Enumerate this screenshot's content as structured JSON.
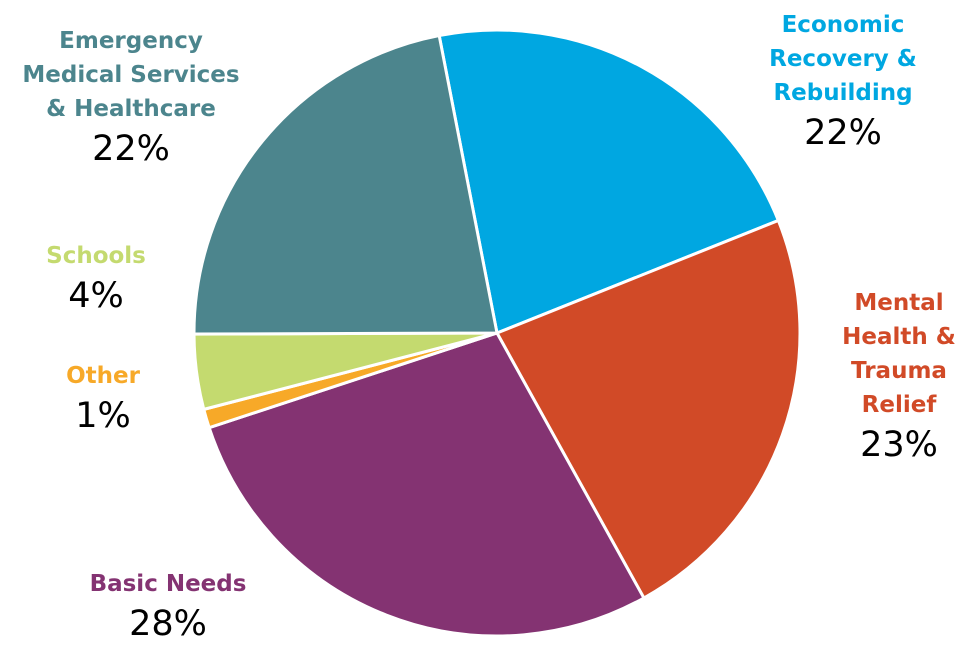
{
  "chart_data": {
    "type": "pie",
    "title": "",
    "slices": [
      {
        "label_lines": [
          "Economic",
          "Recovery &",
          "Rebuilding"
        ],
        "percent_text": "22%",
        "value": 22,
        "color": "#00A7E1"
      },
      {
        "label_lines": [
          "Mental",
          "Health &",
          "Trauma",
          "Relief"
        ],
        "percent_text": "23%",
        "value": 23,
        "color": "#D14A27"
      },
      {
        "label_lines": [
          "Basic Needs"
        ],
        "percent_text": "28%",
        "value": 28,
        "color": "#843372"
      },
      {
        "label_lines": [
          "Other"
        ],
        "percent_text": "1%",
        "value": 1,
        "color": "#F7A928"
      },
      {
        "label_lines": [
          "Schools"
        ],
        "percent_text": "4%",
        "value": 4,
        "color": "#C4DA6F"
      },
      {
        "label_lines": [
          "Emergency",
          "Medical Services",
          "& Healthcare"
        ],
        "percent_text": "22%",
        "value": 22,
        "color": "#4C858D"
      }
    ]
  }
}
